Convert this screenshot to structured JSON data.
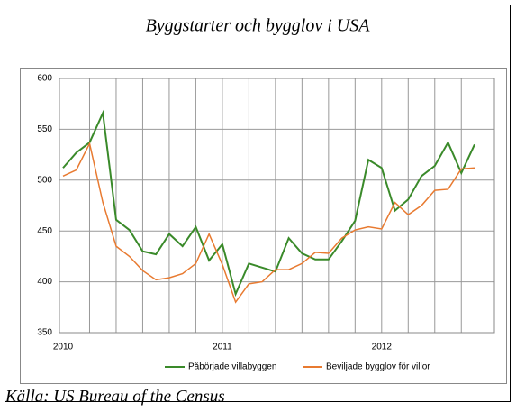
{
  "chart_data": {
    "type": "line",
    "title": "Byggstarter och bygglov i USA",
    "source": "Källa: US Bureau of the Census",
    "categories": [
      "2010",
      null,
      null,
      null,
      null,
      null,
      null,
      null,
      null,
      null,
      null,
      null,
      "2011",
      null,
      null,
      null,
      null,
      null,
      null,
      null,
      null,
      null,
      null,
      null,
      "2012",
      null,
      null,
      null,
      null,
      null,
      null,
      null
    ],
    "series": [
      {
        "name": "Påbörjade villabyggen",
        "color": "#3a8a2a",
        "values": [
          512,
          527,
          537,
          566,
          461,
          451,
          430,
          427,
          447,
          435,
          454,
          421,
          437,
          388,
          418,
          414,
          410,
          443,
          428,
          422,
          422,
          440,
          460,
          520,
          512,
          470,
          481,
          504,
          514,
          537,
          507,
          535
        ]
      },
      {
        "name": "Beviljade bygglov för villor",
        "color": "#e87a30",
        "values": [
          504,
          510,
          536,
          478,
          435,
          425,
          411,
          402,
          404,
          408,
          418,
          447,
          417,
          380,
          398,
          400,
          412,
          412,
          418,
          429,
          428,
          443,
          451,
          454,
          452,
          478,
          466,
          475,
          490,
          491,
          511,
          512
        ]
      }
    ],
    "ylim": [
      350,
      600
    ],
    "yticks": [
      350,
      400,
      450,
      500,
      550,
      600
    ],
    "grid": true,
    "legend": "bottom"
  }
}
